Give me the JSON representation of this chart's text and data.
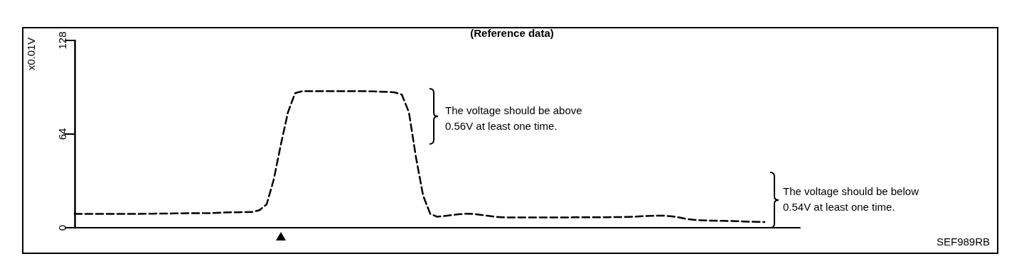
{
  "chart_data": {
    "type": "line",
    "title": "(Reference data)",
    "ylabel": "x0.01V",
    "categories": [
      null,
      null,
      null,
      null,
      null,
      null,
      null,
      null,
      null,
      null,
      null,
      null,
      null,
      null,
      null,
      null,
      null,
      null,
      null,
      null,
      null,
      null,
      null,
      null,
      null,
      null,
      null,
      null,
      null,
      null,
      null,
      null,
      null,
      null,
      null,
      null,
      null,
      null,
      null,
      null,
      null,
      null,
      null,
      null,
      null,
      null,
      null,
      null,
      null,
      null,
      null,
      null,
      null,
      null,
      null,
      null,
      null,
      null,
      null,
      null,
      null,
      null,
      null,
      null,
      null,
      null,
      null,
      null,
      null,
      null,
      null,
      null,
      null,
      null,
      null,
      null,
      null,
      null,
      null,
      null,
      null,
      null,
      null,
      null,
      null,
      null,
      null,
      null,
      null,
      null,
      null,
      null,
      null,
      null,
      null,
      null,
      null,
      null,
      null,
      null,
      null,
      null,
      null
    ],
    "values": [
      9.4,
      9.4,
      9.4,
      9.4,
      9.4,
      9.4,
      9.4,
      9.4,
      9.4,
      9.4,
      9.6,
      9.6,
      9.7,
      9.7,
      9.8,
      9.8,
      9.9,
      9.9,
      10,
      10,
      10.2,
      10.4,
      10.5,
      10.6,
      10.7,
      10.8,
      12,
      16,
      33,
      57,
      79,
      92,
      93.3,
      93.3,
      93.3,
      93.3,
      93.3,
      93.3,
      93.3,
      93.3,
      93.3,
      93.3,
      93.2,
      93,
      92.8,
      92.5,
      91,
      79,
      48,
      22,
      9.5,
      7.5,
      8,
      8.6,
      9.2,
      9.6,
      9.5,
      8.8,
      8.2,
      7.6,
      7.2,
      7,
      7,
      7,
      7,
      7,
      7,
      7,
      7,
      7,
      7.1,
      7.1,
      7.1,
      7.2,
      7.2,
      7.2,
      7.3,
      7.3,
      7.4,
      7.6,
      7.9,
      8.1,
      8.2,
      8.2,
      7.8,
      7,
      6,
      5.4,
      5.1,
      4.9,
      4.8,
      4.7,
      4.6,
      4.5,
      4.3,
      4.1,
      4,
      3.9,
      null,
      null,
      null,
      null,
      null
    ],
    "color": "#000000",
    "line_style": "dashed",
    "marker": "none",
    "ylim": [
      0,
      128
    ],
    "yticks": [
      0,
      64,
      128
    ],
    "tick_labels": "y",
    "grid": false,
    "annotations": [
      "The voltage should be above\n0.56V at least one time.",
      "The voltage should be below\n0.54V at least one time.",
      "SEF989RB"
    ]
  }
}
